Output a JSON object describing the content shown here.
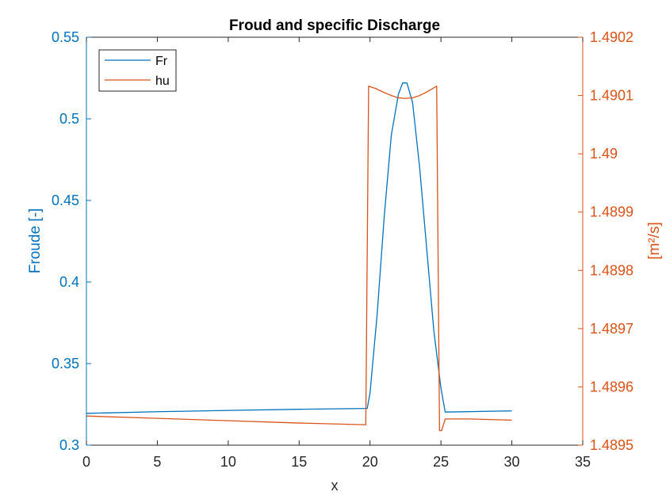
{
  "chart_data": {
    "type": "line",
    "title": "Froud and specific Discharge",
    "xlabel": "x",
    "ylabel_left": "Froude [-]",
    "ylabel_right": "[m²/s]",
    "xlim": [
      0,
      35
    ],
    "ylim_left": [
      0.3,
      0.55
    ],
    "ylim_right": [
      1.4895,
      1.4902
    ],
    "x_ticks": [
      "0",
      "5",
      "10",
      "15",
      "20",
      "25",
      "30",
      "35"
    ],
    "y_ticks_left": [
      "0.3",
      "0.35",
      "0.4",
      "0.45",
      "0.5",
      "0.55"
    ],
    "y_ticks_right": [
      "1.4895",
      "1.4896",
      "1.4897",
      "1.4898",
      "1.4899",
      "1.49",
      "1.4901",
      "1.4902"
    ],
    "grid": false,
    "legend_position": "top-left",
    "colors": {
      "left_axis": "#0072BD",
      "right_axis": "#D95319",
      "frame": "#262626"
    },
    "series": [
      {
        "name": "Fr",
        "axis": "left",
        "color": "#0072BD",
        "x": [
          0,
          5,
          10,
          15,
          19.8,
          20.0,
          20.5,
          21.0,
          21.5,
          22.0,
          22.3,
          22.6,
          23.0,
          23.5,
          24.0,
          24.5,
          25.0,
          25.3,
          30
        ],
        "y": [
          0.3195,
          0.3205,
          0.3213,
          0.322,
          0.3225,
          0.332,
          0.38,
          0.44,
          0.49,
          0.515,
          0.522,
          0.522,
          0.51,
          0.47,
          0.42,
          0.37,
          0.335,
          0.3203,
          0.321
        ]
      },
      {
        "name": "hu",
        "axis": "right",
        "color": "#D95319",
        "x": [
          0,
          5,
          10,
          15,
          19.7,
          19.9,
          20.4,
          21.0,
          21.5,
          22.0,
          22.5,
          23.0,
          23.5,
          24.0,
          24.7,
          24.9,
          25.05,
          25.3,
          27,
          30
        ],
        "y": [
          1.48955,
          1.489546,
          1.489542,
          1.489538,
          1.489535,
          1.490116,
          1.490112,
          1.490105,
          1.4901,
          1.490096,
          1.490095,
          1.490096,
          1.4901,
          1.490106,
          1.490116,
          1.489525,
          1.489525,
          1.489545,
          1.489545,
          1.489543
        ]
      }
    ]
  }
}
